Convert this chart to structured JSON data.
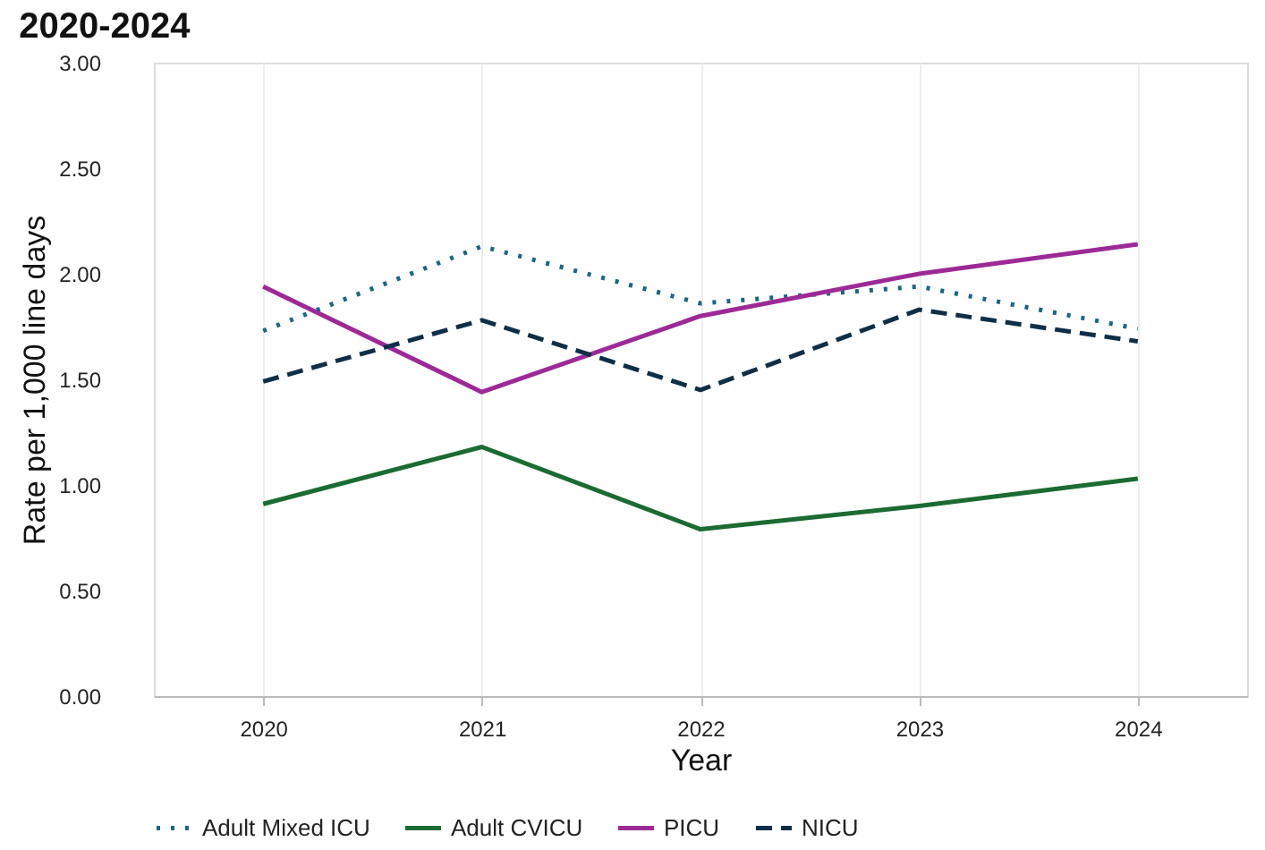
{
  "chart_data": {
    "type": "line",
    "title": "2020-2024",
    "xlabel": "Year",
    "ylabel": "Rate per 1,000 line days",
    "categories": [
      "2020",
      "2021",
      "2022",
      "2023",
      "2024"
    ],
    "series": [
      {
        "name": "Adult Mixed ICU",
        "color": "#1b6585",
        "line_style": "dotted",
        "values": [
          1.73,
          2.13,
          1.86,
          1.94,
          1.74
        ]
      },
      {
        "name": "Adult CVICU",
        "color": "#1b6b32",
        "line_style": "solid",
        "values": [
          0.91,
          1.18,
          0.79,
          0.9,
          1.03
        ]
      },
      {
        "name": "PICU",
        "color": "#9c2a96",
        "line_style": "solid",
        "values": [
          1.94,
          1.44,
          1.8,
          2.0,
          2.14
        ]
      },
      {
        "name": "NICU",
        "color": "#0f2f47",
        "line_style": "dashed",
        "values": [
          1.49,
          1.78,
          1.45,
          1.83,
          1.68
        ]
      }
    ],
    "ylim": [
      0,
      3
    ],
    "yticks": [
      {
        "value": 0,
        "label": "0.00"
      },
      {
        "value": 0.5,
        "label": "0.50"
      },
      {
        "value": 1,
        "label": "1.00"
      },
      {
        "value": 1.5,
        "label": "1.50"
      },
      {
        "value": 2,
        "label": "2.00"
      },
      {
        "value": 2.5,
        "label": "2.50"
      },
      {
        "value": 3,
        "label": "3.00"
      }
    ],
    "grid": "x",
    "legend": "bottom",
    "marker": "none"
  }
}
